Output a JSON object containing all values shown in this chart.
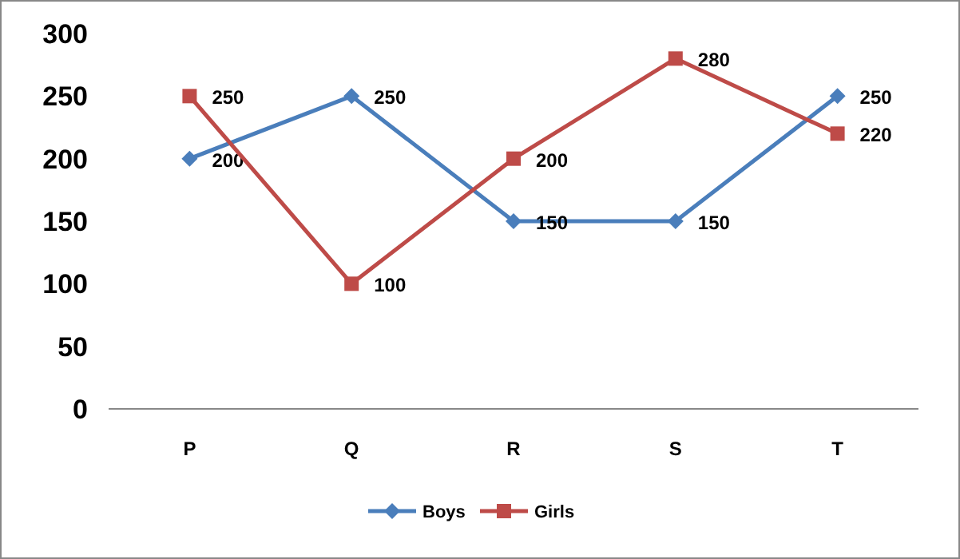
{
  "chart_data": {
    "type": "line",
    "categories": [
      "P",
      "Q",
      "R",
      "S",
      "T"
    ],
    "series": [
      {
        "name": "Boys",
        "color": "#4a7ebb",
        "marker": "diamond",
        "values": [
          200,
          250,
          150,
          150,
          250
        ]
      },
      {
        "name": "Girls",
        "color": "#be4b48",
        "marker": "square",
        "values": [
          250,
          100,
          200,
          280,
          220
        ]
      }
    ],
    "ylim": [
      0,
      300
    ],
    "yticks": [
      0,
      50,
      100,
      150,
      200,
      250,
      300
    ],
    "grid": false,
    "legend": "bottom",
    "data_labels": true,
    "line_style": "solid"
  }
}
